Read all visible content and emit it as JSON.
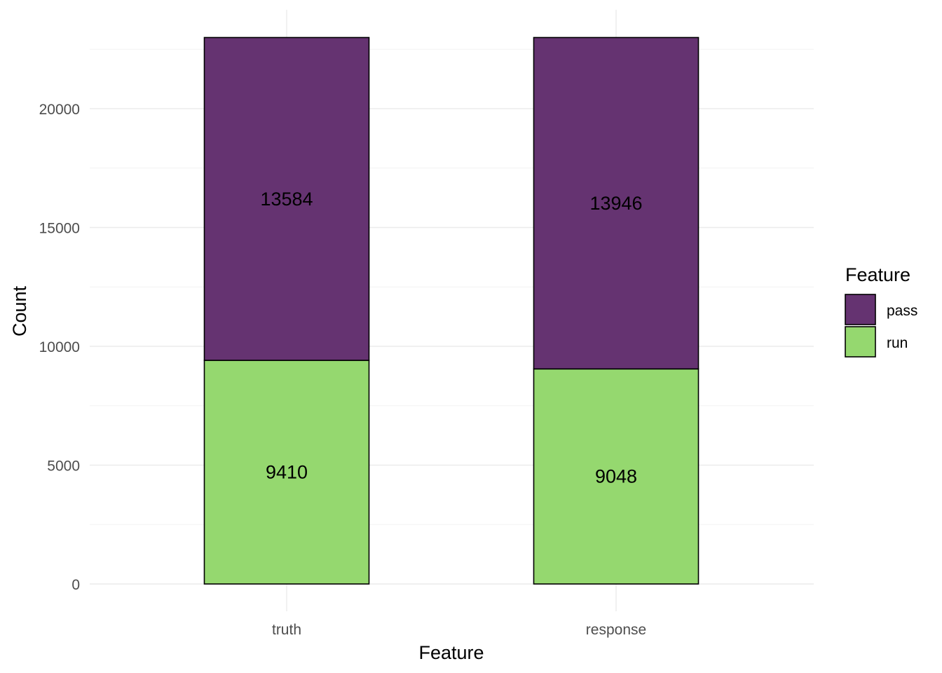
{
  "chart_data": {
    "type": "bar",
    "stacked": true,
    "categories": [
      "truth",
      "response"
    ],
    "series": [
      {
        "name": "run",
        "values": [
          9410,
          9048
        ],
        "color": "#95d86f"
      },
      {
        "name": "pass",
        "values": [
          13584,
          13946
        ],
        "color": "#653371"
      }
    ],
    "xlabel": "Feature",
    "ylabel": "Count",
    "ylim": [
      0,
      23000
    ],
    "yticks": [
      0,
      5000,
      10000,
      15000,
      20000
    ],
    "yticks_text": [
      "0",
      "5000",
      "10000",
      "15000",
      "20000"
    ],
    "grid": true,
    "legend": {
      "title": "Feature",
      "position": "right",
      "entries": [
        {
          "label": "pass",
          "color": "#653371"
        },
        {
          "label": "run",
          "color": "#95d86f"
        }
      ]
    }
  }
}
